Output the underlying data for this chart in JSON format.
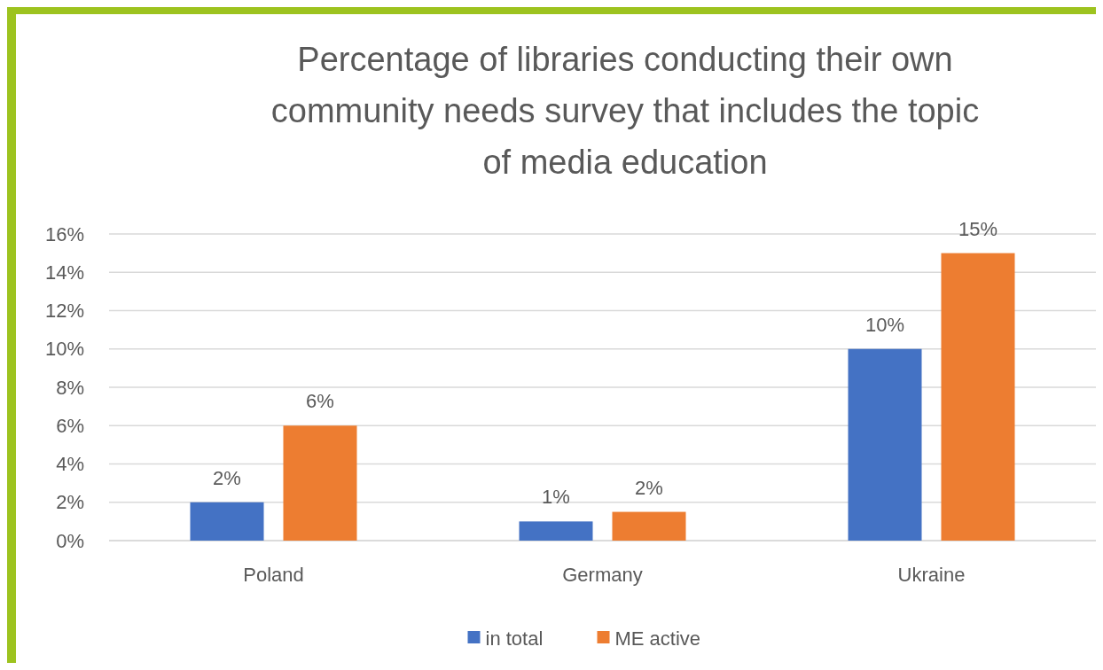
{
  "chart_data": {
    "type": "bar",
    "title": "Percentage of libraries conducting their own community needs survey that includes the topic of media education",
    "categories": [
      "Poland",
      "Germany",
      "Ukraine"
    ],
    "series": [
      {
        "name": "in total",
        "color": "#4472c4",
        "values": [
          2,
          1,
          10
        ],
        "value_labels": [
          "2%",
          "1%",
          "10%"
        ]
      },
      {
        "name": "ME active",
        "color": "#ed7d31",
        "values": [
          6,
          1.5,
          15
        ],
        "value_labels": [
          "6%",
          "2%",
          "15%"
        ]
      }
    ],
    "ylim": [
      0,
      16
    ],
    "yticks": [
      {
        "value": 0,
        "label": "0%"
      },
      {
        "value": 2,
        "label": "2%"
      },
      {
        "value": 4,
        "label": "4%"
      },
      {
        "value": 6,
        "label": "6%"
      },
      {
        "value": 8,
        "label": "8%"
      },
      {
        "value": 10,
        "label": "10%"
      },
      {
        "value": 12,
        "label": "12%"
      },
      {
        "value": 14,
        "label": "14%"
      },
      {
        "value": 16,
        "label": "16%"
      }
    ],
    "grid": "y",
    "legend": "bottom"
  }
}
